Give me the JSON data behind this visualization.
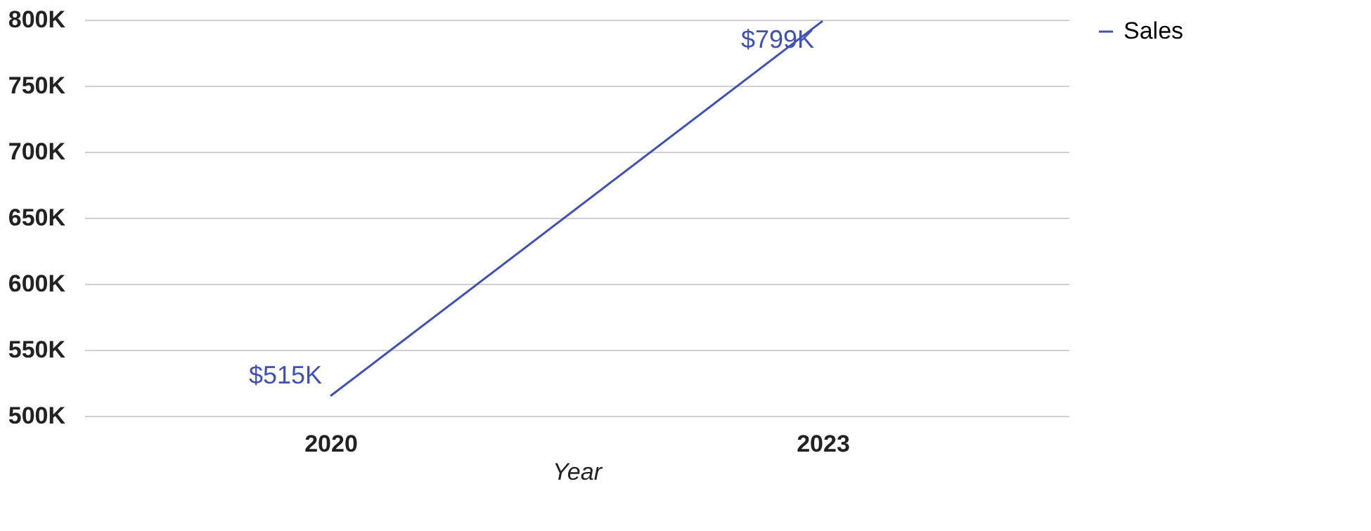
{
  "chart_data": {
    "type": "line",
    "xlabel": "Year",
    "categories": [
      "2020",
      "2023"
    ],
    "series": [
      {
        "name": "Sales",
        "color": "#3f51b5",
        "values": [
          515,
          799
        ],
        "value_labels": [
          "$515K",
          "$799K"
        ]
      }
    ],
    "ylim": [
      500,
      800
    ],
    "yticks": [
      {
        "value": 500,
        "label": "500K"
      },
      {
        "value": 550,
        "label": "550K"
      },
      {
        "value": 600,
        "label": "600K"
      },
      {
        "value": 650,
        "label": "650K"
      },
      {
        "value": 700,
        "label": "700K"
      },
      {
        "value": 750,
        "label": "750K"
      },
      {
        "value": 800,
        "label": "800K"
      }
    ],
    "grid": "y",
    "legend": "top right",
    "marker": "none",
    "line_style": "solid"
  }
}
